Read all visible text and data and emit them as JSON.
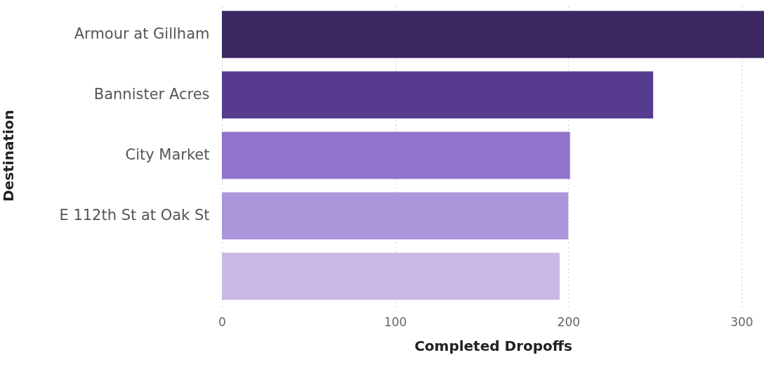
{
  "chart_data": {
    "type": "bar",
    "orientation": "horizontal",
    "xlabel": "Completed Dropoffs",
    "ylabel": "Destination",
    "categories": [
      "Armour at Gillham",
      "Bannister Acres",
      "City Market",
      "E 112th St at Oak St",
      null
    ],
    "values": [
      313,
      249,
      201,
      200,
      195
    ],
    "colors": [
      "#3b2862",
      "#563b8f",
      "#9273cc",
      "#ab96dc",
      "#c9b9e6"
    ],
    "xlim": [
      0,
      313
    ],
    "xticks": [
      0,
      100,
      200,
      300
    ],
    "grid": "x"
  }
}
